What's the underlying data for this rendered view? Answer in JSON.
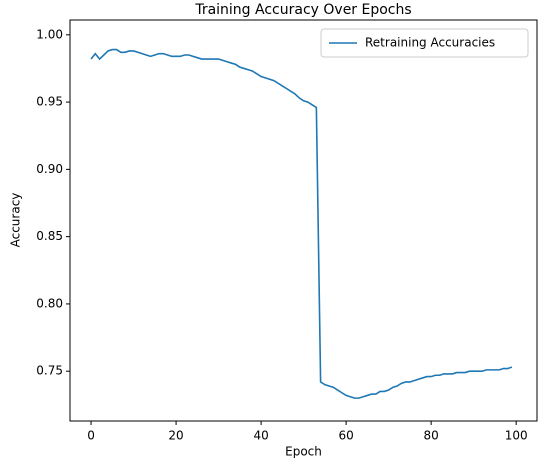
{
  "chart_data": {
    "type": "line",
    "title": "Training Accuracy Over Epochs",
    "x_label": "Epoch",
    "y_label": "Accuracy",
    "x": [
      0,
      1,
      2,
      3,
      4,
      5,
      6,
      7,
      8,
      9,
      10,
      11,
      12,
      13,
      14,
      15,
      16,
      17,
      18,
      19,
      20,
      21,
      22,
      23,
      24,
      25,
      26,
      27,
      28,
      29,
      30,
      31,
      32,
      33,
      34,
      35,
      36,
      37,
      38,
      39,
      40,
      41,
      42,
      43,
      44,
      45,
      46,
      47,
      48,
      49,
      50,
      51,
      52,
      53,
      54,
      55,
      56,
      57,
      58,
      59,
      60,
      61,
      62,
      63,
      64,
      65,
      66,
      67,
      68,
      69,
      70,
      71,
      72,
      73,
      74,
      75,
      76,
      77,
      78,
      79,
      80,
      81,
      82,
      83,
      84,
      85,
      86,
      87,
      88,
      89,
      90,
      91,
      92,
      93,
      94,
      95,
      96,
      97,
      98,
      99
    ],
    "series": [
      {
        "name": "Retraining Accuracies",
        "color": "#1f77b4",
        "values": [
          0.982,
          0.986,
          0.982,
          0.985,
          0.988,
          0.989,
          0.989,
          0.987,
          0.987,
          0.988,
          0.988,
          0.987,
          0.986,
          0.985,
          0.984,
          0.985,
          0.986,
          0.986,
          0.985,
          0.984,
          0.984,
          0.984,
          0.985,
          0.985,
          0.984,
          0.983,
          0.982,
          0.982,
          0.982,
          0.982,
          0.982,
          0.981,
          0.98,
          0.979,
          0.978,
          0.976,
          0.975,
          0.974,
          0.973,
          0.971,
          0.969,
          0.968,
          0.967,
          0.966,
          0.964,
          0.962,
          0.96,
          0.958,
          0.956,
          0.953,
          0.951,
          0.95,
          0.948,
          0.946,
          0.742,
          0.74,
          0.739,
          0.738,
          0.736,
          0.734,
          0.732,
          0.731,
          0.73,
          0.73,
          0.731,
          0.732,
          0.733,
          0.733,
          0.735,
          0.735,
          0.736,
          0.738,
          0.739,
          0.741,
          0.742,
          0.742,
          0.743,
          0.744,
          0.745,
          0.746,
          0.746,
          0.747,
          0.747,
          0.748,
          0.748,
          0.748,
          0.749,
          0.749,
          0.749,
          0.75,
          0.75,
          0.75,
          0.75,
          0.751,
          0.751,
          0.751,
          0.751,
          0.752,
          0.752,
          0.753
        ]
      }
    ],
    "xlim": [
      -4.95,
      104.9
    ],
    "ylim": [
      0.713,
      1.011
    ],
    "xticks": [
      0,
      20,
      40,
      60,
      80,
      100
    ],
    "yticks": [
      0.75,
      {
        "value": 0.8,
        "label": "0.80"
      },
      0.85,
      {
        "value": 0.9,
        "label": "0.90"
      },
      0.95,
      {
        "value": 1.0,
        "label": "1.00"
      }
    ],
    "legend": "upper right"
  }
}
